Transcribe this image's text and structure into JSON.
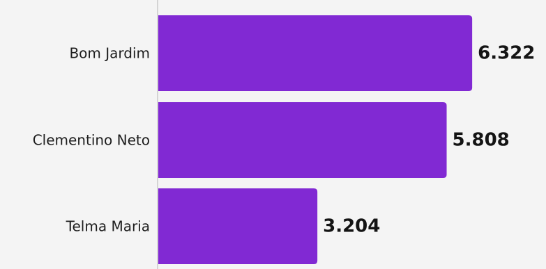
{
  "chart_data": {
    "type": "bar",
    "orientation": "horizontal",
    "categories": [
      "Bom Jardim",
      "Clementino Neto",
      "Telma Maria"
    ],
    "values": [
      6.322,
      5.808,
      3.204
    ],
    "value_labels": [
      "6.322",
      "5.808",
      "3.204"
    ],
    "title": "",
    "xlabel": "",
    "ylabel": "",
    "xlim": [
      0,
      7.3
    ],
    "grid": false,
    "legend": "none"
  },
  "colors": {
    "bar": "#8129d3",
    "axis": "#c9c9c9",
    "background": "#f4f4f4",
    "label_text": "#1d1d1d",
    "value_text": "#141414"
  }
}
